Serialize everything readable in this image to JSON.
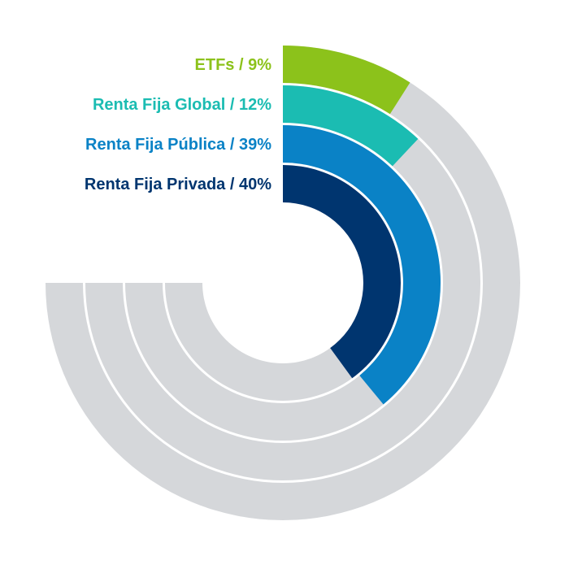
{
  "chart_data": {
    "type": "pie",
    "subtype": "radial-bar",
    "background_track_color": "#d5d7da",
    "track_extent_degrees": 270,
    "series": [
      {
        "label": "ETFs / 9%",
        "name": "ETFs",
        "value": 9,
        "color": "#8cc21b"
      },
      {
        "label": "Renta Fija Global / 12%",
        "name": "Renta Fija Global",
        "value": 12,
        "color": "#1bbcb2"
      },
      {
        "label": "Renta Fija Pública / 39%",
        "name": "Renta Fija Pública",
        "value": 39,
        "color": "#0a82c6"
      },
      {
        "label": "Renta Fija Privada / 40%",
        "name": "Renta Fija Privada",
        "value": 40,
        "color": "#00356f"
      }
    ]
  }
}
